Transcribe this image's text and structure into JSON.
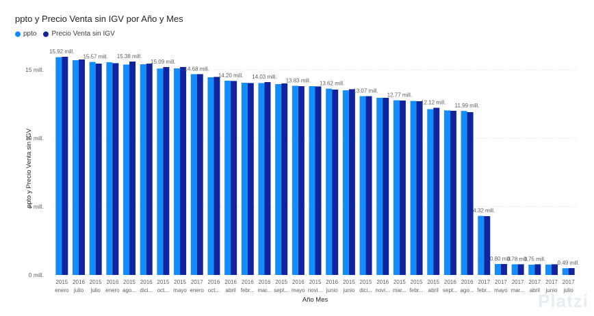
{
  "title": "ppto y Precio Venta sin IGV por Año y Mes",
  "legend": [
    {
      "name": "ppto",
      "color": "#118DFF"
    },
    {
      "name": "Precio Venta sin IGV",
      "color": "#12239E"
    }
  ],
  "watermark": "Platzi",
  "chart_data": {
    "type": "bar",
    "ylabel": "ppto y Precio Venta sin IGV",
    "xlabel": "Año Mes",
    "ylim": [
      0,
      16
    ],
    "yticks": [
      {
        "value": 0,
        "label": "0 mill."
      },
      {
        "value": 5,
        "label": "5 mill."
      },
      {
        "value": 10,
        "label": "10 mill."
      },
      {
        "value": 15,
        "label": "15 mill."
      }
    ],
    "grid": true,
    "legend_position": "top-left",
    "categories": [
      {
        "year": "2015",
        "month": "enero"
      },
      {
        "year": "2016",
        "month": "julio"
      },
      {
        "year": "2015",
        "month": "julio"
      },
      {
        "year": "2016",
        "month": "enero"
      },
      {
        "year": "2015",
        "month": "ago..."
      },
      {
        "year": "2016",
        "month": "dici..."
      },
      {
        "year": "2015",
        "month": "oct..."
      },
      {
        "year": "2015",
        "month": "mayo"
      },
      {
        "year": "2017",
        "month": "enero"
      },
      {
        "year": "2016",
        "month": "oct..."
      },
      {
        "year": "2016",
        "month": "abril"
      },
      {
        "year": "2016",
        "month": "febr..."
      },
      {
        "year": "2016",
        "month": "mar..."
      },
      {
        "year": "2015",
        "month": "sept..."
      },
      {
        "year": "2016",
        "month": "mayo"
      },
      {
        "year": "2015",
        "month": "novi..."
      },
      {
        "year": "2016",
        "month": "junio"
      },
      {
        "year": "2015",
        "month": "junio"
      },
      {
        "year": "2015",
        "month": "dici..."
      },
      {
        "year": "2016",
        "month": "novi..."
      },
      {
        "year": "2015",
        "month": "mar..."
      },
      {
        "year": "2015",
        "month": "febr..."
      },
      {
        "year": "2015",
        "month": "abril"
      },
      {
        "year": "2016",
        "month": "sept..."
      },
      {
        "year": "2016",
        "month": "ago..."
      },
      {
        "year": "2017",
        "month": "febr..."
      },
      {
        "year": "2017",
        "month": "mayo"
      },
      {
        "year": "2017",
        "month": "mar..."
      },
      {
        "year": "2017",
        "month": "abril"
      },
      {
        "year": "2017",
        "month": "junio"
      },
      {
        "year": "2017",
        "month": "julio"
      }
    ],
    "series": [
      {
        "name": "ppto",
        "color": "#118DFF",
        "values": [
          15.92,
          15.7,
          15.57,
          15.55,
          15.38,
          15.4,
          15.09,
          15.1,
          14.68,
          14.45,
          14.2,
          14.05,
          14.03,
          13.95,
          13.83,
          13.8,
          13.62,
          13.5,
          13.07,
          12.95,
          12.77,
          12.72,
          12.12,
          12.03,
          11.99,
          4.32,
          0.8,
          0.78,
          0.75,
          0.76,
          0.49
        ]
      },
      {
        "name": "Precio Venta sin IGV",
        "color": "#12239E",
        "values": [
          15.95,
          15.75,
          15.45,
          15.48,
          15.6,
          15.45,
          15.2,
          15.2,
          14.68,
          14.48,
          14.18,
          14.03,
          14.1,
          14.0,
          13.8,
          13.78,
          13.55,
          13.58,
          13.07,
          12.95,
          12.75,
          12.7,
          12.22,
          12.0,
          11.9,
          4.3,
          0.8,
          0.78,
          0.78,
          0.78,
          0.5
        ]
      }
    ],
    "data_labels": [
      "15.92 mill.",
      "15.57 mill.",
      "15.38 mill.",
      "15.09 mill.",
      "14.68 mill.",
      "14.20 mill.",
      "14.03 mill.",
      "13.83 mill.",
      "13.62 mill.",
      "13.07 mill.",
      "12.77 mill.",
      "12.12 mill.",
      "11.99 mill.",
      "4.32 mill.",
      "0.80 mill.",
      "0.78 mill.",
      "0.75 mill.",
      "0.49 mill."
    ],
    "labeled_indices": [
      0,
      2,
      4,
      6,
      8,
      10,
      12,
      14,
      16,
      18,
      20,
      22,
      24,
      25,
      26,
      27,
      28,
      30
    ]
  }
}
